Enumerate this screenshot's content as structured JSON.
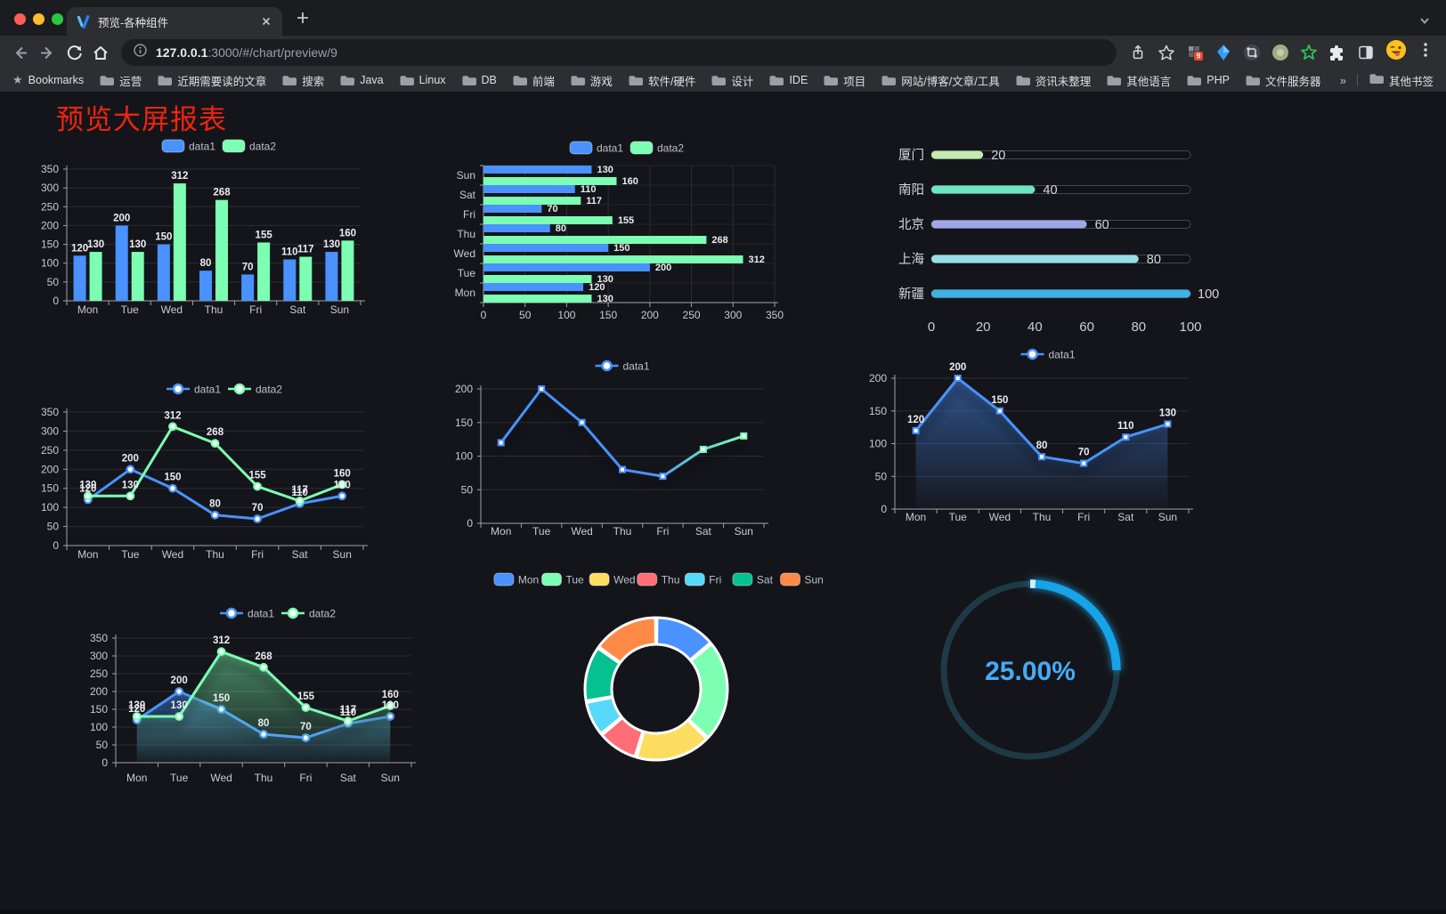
{
  "browser": {
    "tab_title": "预览-各种组件",
    "url_host": "127.0.0.1",
    "url_path": ":3000/#/chart/preview/9",
    "bookmarks_label": "Bookmarks",
    "bookmark_folders": [
      "运营",
      "近期需要读的文章",
      "搜索",
      "Java",
      "Linux",
      "DB",
      "前端",
      "游戏",
      "软件/硬件",
      "设计",
      "IDE",
      "项目",
      "网站/博客/文章/工具",
      "资讯未整理",
      "其他语言",
      "PHP",
      "文件服务器"
    ],
    "overflow_chevron": "»",
    "other_bookmarks_label": "其他书签",
    "extension_badge_count": "9"
  },
  "page": {
    "title": "预览大屏报表",
    "title_color": "#f0240e"
  },
  "chart_data": [
    {
      "id": "bar-vertical",
      "type": "bar",
      "orientation": "vertical",
      "categories": [
        "Mon",
        "Tue",
        "Wed",
        "Thu",
        "Fri",
        "Sat",
        "Sun"
      ],
      "series": [
        {
          "name": "data1",
          "color": "#4992ff",
          "values": [
            120,
            200,
            150,
            80,
            70,
            110,
            130
          ]
        },
        {
          "name": "data2",
          "color": "#7cffb2",
          "values": [
            130,
            130,
            312,
            268,
            155,
            117,
            160
          ]
        }
      ],
      "ylim": [
        0,
        350
      ],
      "ytick_step": 50,
      "yticks": [
        0,
        50,
        100,
        150,
        200,
        250,
        300,
        350
      ],
      "legend_position": "top",
      "grid": true
    },
    {
      "id": "bar-horizontal",
      "type": "bar",
      "orientation": "horizontal",
      "categories": [
        "Mon",
        "Tue",
        "Wed",
        "Thu",
        "Fri",
        "Sat",
        "Sun"
      ],
      "display_order": "Mon at bottom, Sun at top",
      "series": [
        {
          "name": "data1",
          "color": "#4992ff",
          "values": [
            120,
            200,
            150,
            80,
            70,
            110,
            130
          ]
        },
        {
          "name": "data2",
          "color": "#7cffb2",
          "values": [
            130,
            130,
            312,
            268,
            155,
            117,
            160
          ]
        }
      ],
      "xlim": [
        0,
        350
      ],
      "xtick_step": 50,
      "xticks": [
        0,
        50,
        100,
        150,
        200,
        250,
        300,
        350
      ],
      "legend_position": "top",
      "grid": true
    },
    {
      "id": "progress-bars",
      "type": "bar",
      "orientation": "horizontal",
      "categories": [
        "厦门",
        "南阳",
        "北京",
        "上海",
        "新疆"
      ],
      "values": [
        20,
        40,
        60,
        80,
        100
      ],
      "colors": [
        "#c4ebad",
        "#6be6c1",
        "#a0a7e6",
        "#96dee8",
        "#3fb1e3"
      ],
      "xlim": [
        0,
        100
      ],
      "xtick_step": 20,
      "xticks": [
        0,
        20,
        40,
        60,
        80,
        100
      ]
    },
    {
      "id": "line-two",
      "type": "line",
      "categories": [
        "Mon",
        "Tue",
        "Wed",
        "Thu",
        "Fri",
        "Sat",
        "Sun"
      ],
      "series": [
        {
          "name": "data1",
          "color": "#4992ff",
          "values": [
            120,
            200,
            150,
            80,
            70,
            110,
            130
          ]
        },
        {
          "name": "data2",
          "color": "#7cffb2",
          "values": [
            130,
            130,
            312,
            268,
            155,
            117,
            160
          ]
        }
      ],
      "ylim": [
        0,
        350
      ],
      "ytick_step": 50,
      "yticks": [
        0,
        50,
        100,
        150,
        200,
        250,
        300,
        350
      ],
      "legend_position": "top",
      "show_point_labels": true
    },
    {
      "id": "line-one",
      "type": "line",
      "categories": [
        "Mon",
        "Tue",
        "Wed",
        "Thu",
        "Fri",
        "Sat",
        "Sun"
      ],
      "series": [
        {
          "name": "data1",
          "color": "#4992ff",
          "gradient": [
            "#4992ff",
            "#7cffb2"
          ],
          "values": [
            120,
            200,
            150,
            80,
            70,
            110,
            130
          ]
        }
      ],
      "ylim": [
        0,
        200
      ],
      "ytick_step": 50,
      "yticks": [
        0,
        50,
        100,
        150,
        200
      ],
      "legend_position": "top",
      "show_point_labels": false
    },
    {
      "id": "line-area",
      "type": "area",
      "categories": [
        "Mon",
        "Tue",
        "Wed",
        "Thu",
        "Fri",
        "Sat",
        "Sun"
      ],
      "series": [
        {
          "name": "data1",
          "color": "#4992ff",
          "values": [
            120,
            200,
            150,
            80,
            70,
            110,
            130
          ]
        }
      ],
      "ylim": [
        0,
        200
      ],
      "ytick_step": 50,
      "yticks": [
        0,
        50,
        100,
        150,
        200
      ],
      "legend_position": "top",
      "show_point_labels": true
    },
    {
      "id": "area-two",
      "type": "area",
      "categories": [
        "Mon",
        "Tue",
        "Wed",
        "Thu",
        "Fri",
        "Sat",
        "Sun"
      ],
      "series": [
        {
          "name": "data1",
          "color": "#4992ff",
          "values": [
            120,
            200,
            150,
            80,
            70,
            110,
            130
          ]
        },
        {
          "name": "data2",
          "color": "#7cffb2",
          "values": [
            130,
            130,
            312,
            268,
            155,
            117,
            160
          ]
        }
      ],
      "ylim": [
        0,
        350
      ],
      "ytick_step": 50,
      "yticks": [
        0,
        50,
        100,
        150,
        200,
        250,
        300,
        350
      ],
      "legend_position": "top",
      "show_point_labels": true
    },
    {
      "id": "donut",
      "type": "pie",
      "inner_radius_ratio": 0.62,
      "categories": [
        "Mon",
        "Tue",
        "Wed",
        "Thu",
        "Fri",
        "Sat",
        "Sun"
      ],
      "values": [
        120,
        200,
        150,
        80,
        70,
        110,
        130
      ],
      "colors": [
        "#4992ff",
        "#7cffb2",
        "#fddd60",
        "#ff6e76",
        "#58d9f9",
        "#05c091",
        "#ff8a45"
      ],
      "legend_position": "top"
    },
    {
      "id": "gauge",
      "type": "gauge",
      "value": 25,
      "display": "25.00%",
      "min": 0,
      "max": 100,
      "color": "#18a3e8",
      "track_color": "#1d3a46",
      "text_color": "#46abf5"
    }
  ]
}
